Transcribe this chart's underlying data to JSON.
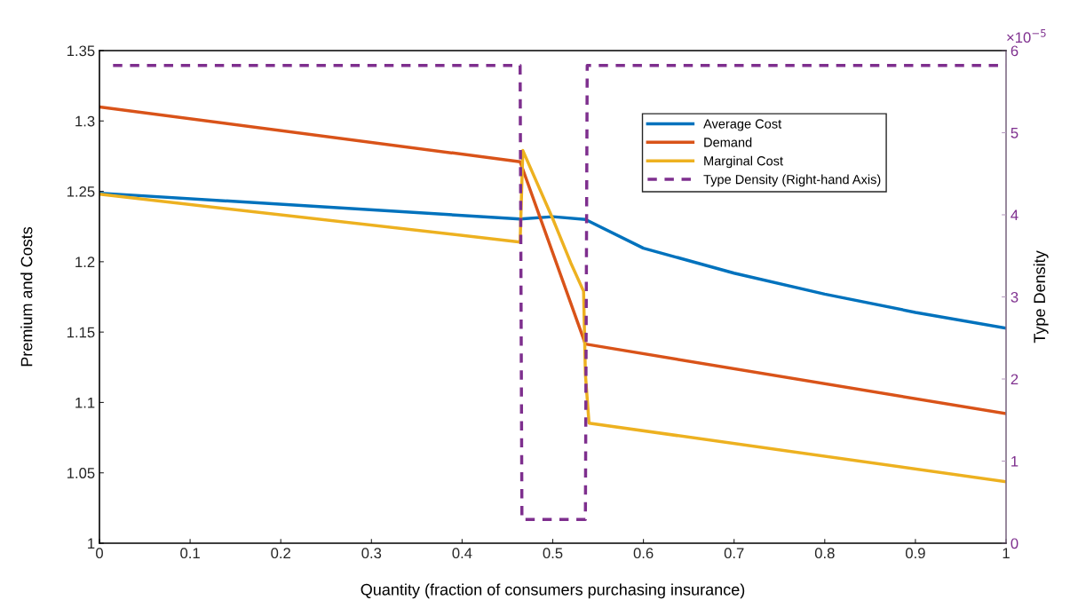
{
  "chart_data": {
    "type": "line",
    "xlabel": "Quantity (fraction of consumers purchasing insurance)",
    "ylabel": "Premium and Costs",
    "y2label": "Type Density",
    "xlim": [
      0,
      1
    ],
    "xticks": [
      0,
      0.1,
      0.2,
      0.3,
      0.4,
      0.5,
      0.6,
      0.7,
      0.8,
      0.9,
      1
    ],
    "ylim": [
      1,
      1.35
    ],
    "yticks": [
      1,
      1.05,
      1.1,
      1.15,
      1.2,
      1.25,
      1.3,
      1.35
    ],
    "y2lim": [
      0,
      6
    ],
    "y2ticks": [
      0,
      1,
      2,
      3,
      4,
      5,
      6
    ],
    "annotations": [
      "×10$^{−5}$"
    ],
    "legend": "top right",
    "grid": false,
    "line_style": "solid",
    "series": [
      {
        "name": "Average Cost",
        "color": "#0072bd",
        "x": [
          0,
          0.464,
          0.5,
          0.536,
          0.6,
          0.7,
          0.8,
          0.9,
          1
        ],
        "values": [
          1.2487,
          1.2304,
          1.232,
          1.23,
          1.2096,
          1.1919,
          1.177,
          1.164,
          1.1528
        ]
      },
      {
        "name": "Demand",
        "color": "#d95319",
        "x": [
          0,
          0.464,
          0.536,
          1
        ],
        "values": [
          1.31,
          1.271,
          1.1415,
          1.092
        ]
      },
      {
        "name": "Marginal Cost",
        "color": "#edb120",
        "x": [
          0,
          0.464,
          0.467,
          0.5,
          0.52,
          0.534,
          0.536,
          0.54,
          1
        ],
        "values": [
          1.248,
          1.214,
          1.279,
          1.2305,
          1.199,
          1.179,
          1.12,
          1.0853,
          1.0437
        ]
      },
      {
        "name": "Type Density (Right-hand Axis)",
        "color": "#7e2f8e",
        "axis": "y2",
        "line_style": "dashed",
        "x": [
          0.015,
          0.464,
          0.466,
          0.536,
          0.538,
          1
        ],
        "values": [
          5.82,
          5.82,
          0.29,
          0.29,
          5.82,
          5.82
        ]
      }
    ]
  }
}
